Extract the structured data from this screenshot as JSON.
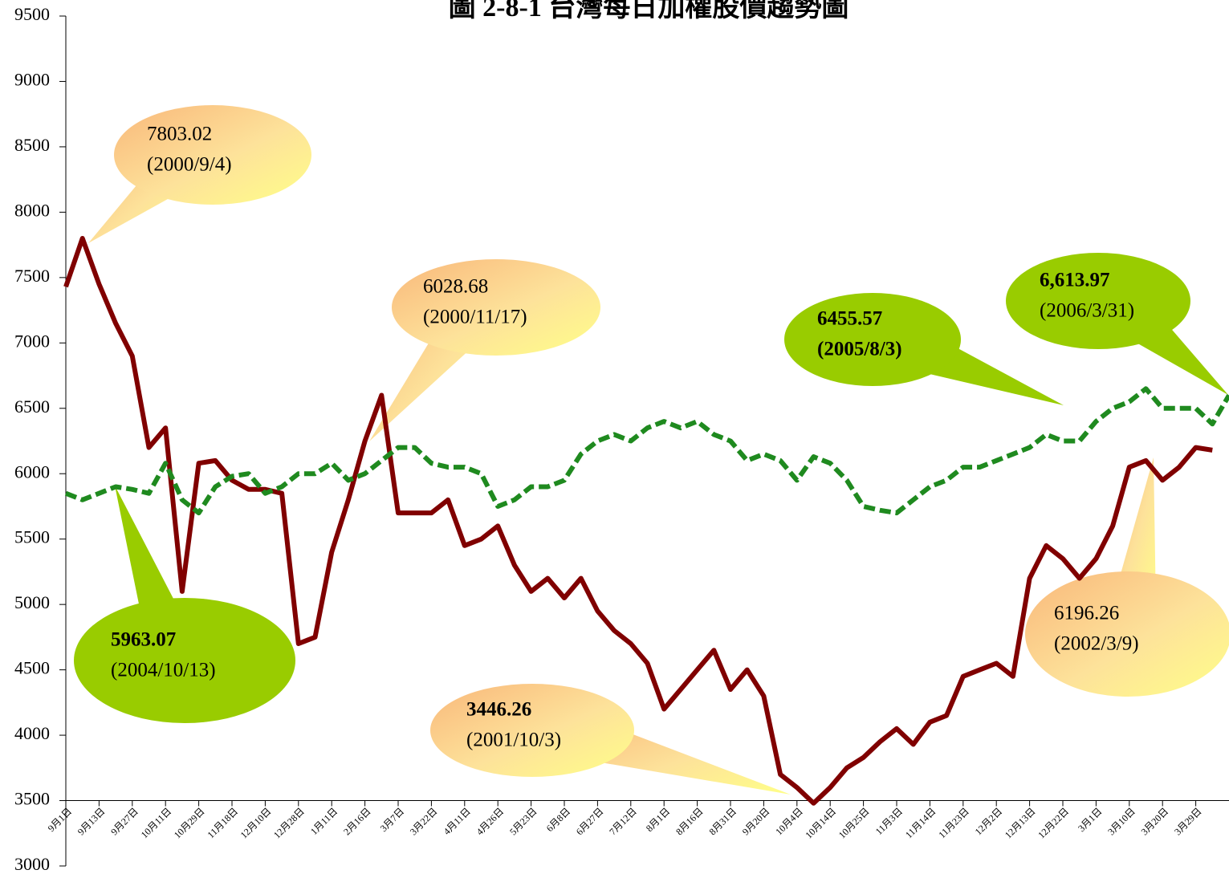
{
  "chart_data": {
    "type": "line",
    "title": "圖 2-8-1 台灣每日加權股價趨勢圖",
    "categories": [
      "9月1日",
      null,
      "9月13日",
      null,
      "9月27日",
      null,
      "10月11日",
      null,
      "10月29日",
      null,
      "11月18日",
      null,
      "12月10日",
      null,
      "12月28日",
      null,
      "1月11日",
      null,
      "2月16日",
      null,
      "3月7日",
      null,
      "3月22日",
      null,
      "4月11日",
      null,
      "4月26日",
      null,
      "5月23日",
      null,
      "6月8日",
      null,
      "6月27日",
      null,
      "7月12日",
      null,
      "8月1日",
      null,
      "8月16日",
      null,
      "8月31日",
      null,
      "9月20日",
      null,
      "10月4日",
      null,
      "10月14日",
      null,
      "10月25日",
      null,
      "11月3日",
      null,
      "11月14日",
      null,
      "11月23日",
      null,
      "12月2日",
      null,
      "12月13日",
      null,
      "12月22日",
      null,
      "3月1日",
      null,
      "3月10日",
      null,
      "3月20日",
      null,
      "3月29日",
      null,
      null
    ],
    "series": [
      {
        "color": "#800000",
        "dashed": false,
        "values": [
          7430,
          7800,
          7450,
          7150,
          6900,
          6200,
          6350,
          5100,
          6080,
          6100,
          5950,
          5880,
          5880,
          5850,
          4700,
          4750,
          5400,
          5800,
          6250,
          6600,
          5700,
          5700,
          5700,
          5800,
          5450,
          5500,
          5600,
          5300,
          5100,
          5200,
          5050,
          5200,
          4950,
          4800,
          4700,
          4550,
          4200,
          4350,
          4500,
          4650,
          4350,
          4500,
          4300,
          3700,
          3600,
          3480,
          3600,
          3750,
          3830,
          3950,
          4050,
          3930,
          4100,
          4150,
          4450,
          4500,
          4550,
          4450,
          5200,
          5450,
          5350,
          5200,
          5350,
          5600,
          6050,
          6100,
          5950,
          6050,
          6200,
          6180,
          null
        ]
      },
      {
        "color": "#1f8a1f",
        "dashed": true,
        "values": [
          5850,
          5800,
          5850,
          5900,
          5880,
          5850,
          6080,
          5800,
          5700,
          5900,
          5980,
          6000,
          5850,
          5900,
          6000,
          6000,
          6080,
          5950,
          6000,
          6100,
          6200,
          6200,
          6080,
          6050,
          6050,
          6000,
          5750,
          5800,
          5900,
          5900,
          5950,
          6150,
          6250,
          6300,
          6250,
          6350,
          6400,
          6350,
          6400,
          6300,
          6250,
          6100,
          6150,
          6100,
          5950,
          6130,
          6080,
          5950,
          5750,
          5720,
          5700,
          5800,
          5900,
          5950,
          6050,
          6050,
          6100,
          6150,
          6200,
          6300,
          6250,
          6250,
          6400,
          6500,
          6550,
          6650,
          6500,
          6500,
          6500,
          6380,
          6600
        ]
      }
    ],
    "ylim": [
      3000,
      9500
    ],
    "yticks": [
      3000,
      3500,
      4000,
      4500,
      5000,
      5500,
      6000,
      6500,
      7000,
      7500,
      8000,
      8500,
      9000,
      9500
    ],
    "x_axis_at": 3500,
    "annotations": [
      {
        "style": "peach",
        "lines": [
          "7803.02",
          "(2000/9/4)"
        ]
      },
      {
        "style": "peach",
        "lines": [
          "6028.68",
          "(2000/11/17)"
        ]
      },
      {
        "style": "green",
        "lines": [
          "5963.07",
          "(2004/10/13)"
        ]
      },
      {
        "style": "peach",
        "lines": [
          "3446.26",
          "(2001/10/3)"
        ]
      },
      {
        "style": "green",
        "lines": [
          "6455.57",
          "(2005/8/3)"
        ]
      },
      {
        "style": "green",
        "lines": [
          "6,613.97",
          "(2006/3/31)"
        ]
      },
      {
        "style": "peach",
        "lines": [
          "6196.26",
          "(2002/3/9)"
        ]
      }
    ]
  }
}
